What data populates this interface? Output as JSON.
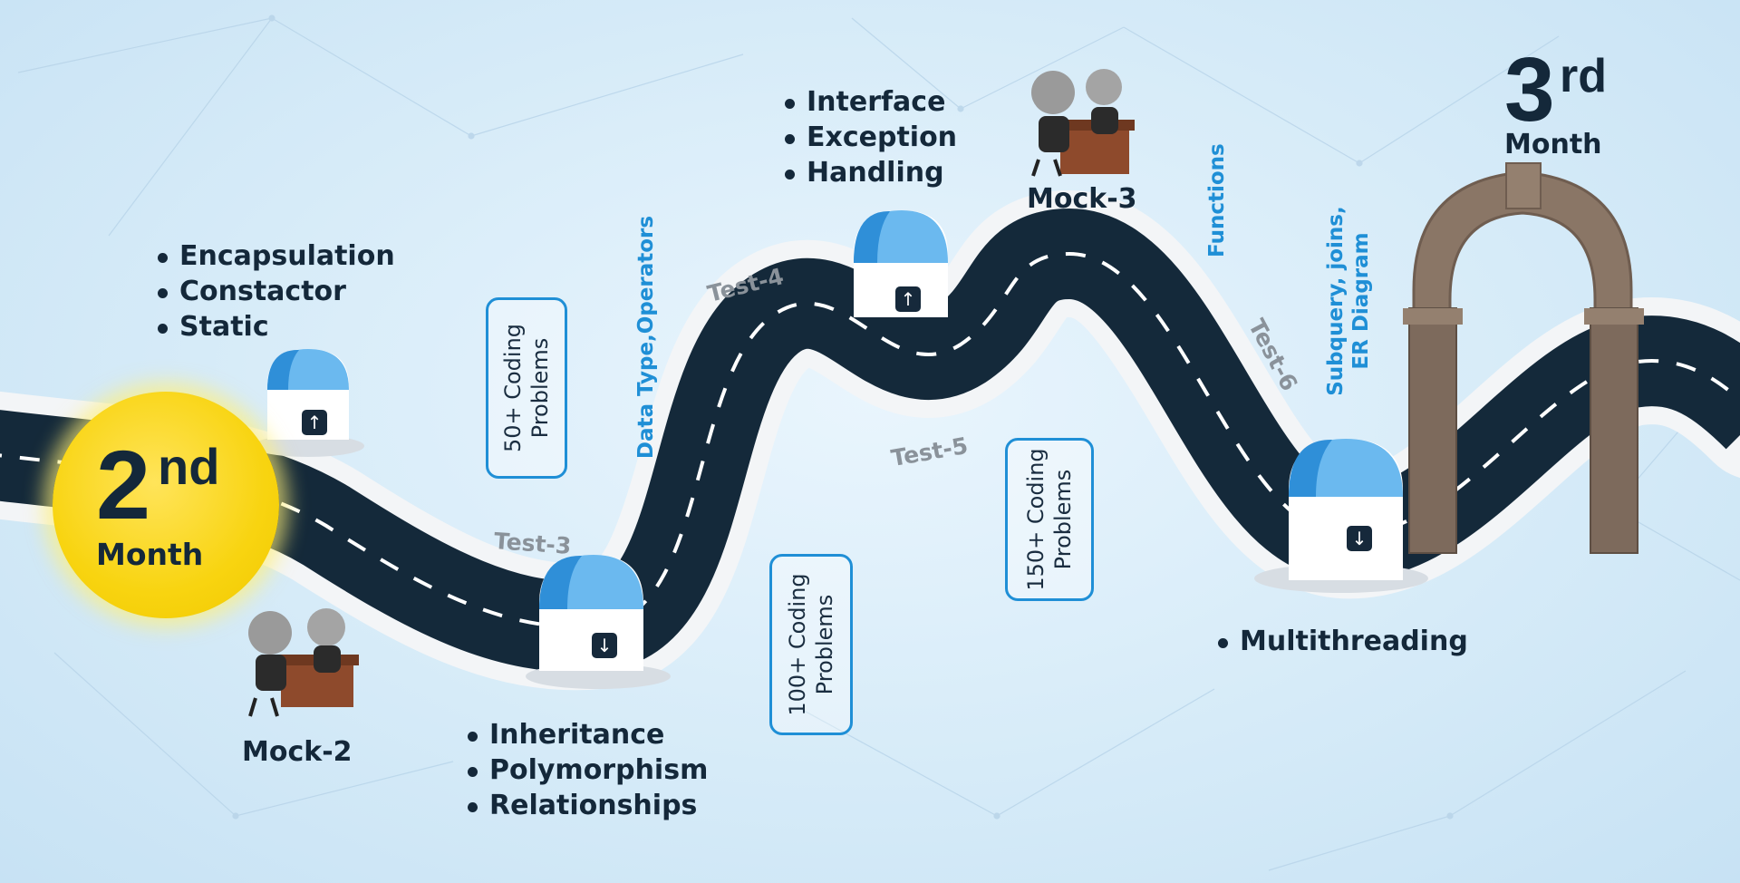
{
  "months": {
    "start": {
      "number": "2",
      "suffix": "nd",
      "label": "Month"
    },
    "end": {
      "number": "3",
      "suffix": "rd",
      "label": "Month"
    }
  },
  "topics": {
    "group1": [
      "Encapsulation",
      "Constactor",
      "Static"
    ],
    "group2": [
      "Inheritance",
      "Polymorphism",
      "Relationships"
    ],
    "group3": [
      "Interface",
      "Exception",
      "Handling"
    ],
    "group4": [
      "Multithreading"
    ]
  },
  "mocks": {
    "mock2": "Mock-2",
    "mock3": "Mock-3"
  },
  "tests": {
    "test3": "Test-3",
    "test4": "Test-4",
    "test5": "Test-5",
    "test6": "Test-6"
  },
  "coding_boxes": {
    "box50": "50+ Coding\nProblems",
    "box100": "100+ Coding\nProblems",
    "box150": "150+ Coding\nProblems"
  },
  "vertical_topics": {
    "datatype": "Data Type,Operators",
    "functions": "Functions",
    "subquery": "Subquery, joins,\nER Diagram"
  },
  "milestones": [
    {
      "icon": "arrow-up-icon",
      "symbol": "↑"
    },
    {
      "icon": "arrow-down-icon",
      "symbol": "↓"
    },
    {
      "icon": "arrow-up-icon",
      "symbol": "↑"
    },
    {
      "icon": "arrow-down-icon",
      "symbol": "↓"
    }
  ],
  "colors": {
    "road": "#14293a",
    "road_edge": "#f2f4f6",
    "accent_blue": "#1f8fd6",
    "month_yellow": "#f8d410",
    "text_dark": "#14283a",
    "arch_stone": "#8a7666"
  }
}
